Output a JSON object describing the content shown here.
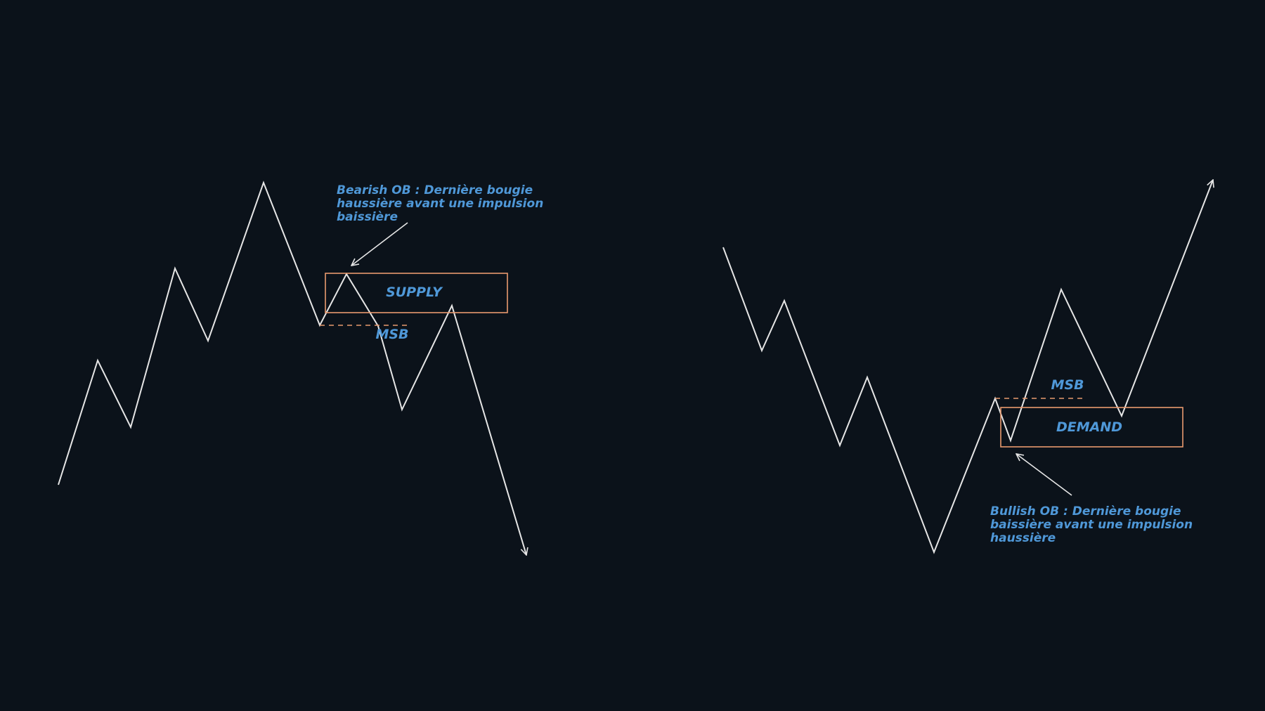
{
  "colors": {
    "background": "#0b121a",
    "price_line": "#e6e6e6",
    "zone_border": "#e89a6e",
    "msb_line": "#e89a6e",
    "label_text": "#4f98d8",
    "arrow": "#e6e6e6"
  },
  "bearish_panel": {
    "zone_label": "SUPPLY",
    "msb_label": "MSB",
    "note_lines": [
      "Bearish OB : Dernière bougie",
      "haussière avant une impulsion",
      "baissière"
    ]
  },
  "bullish_panel": {
    "zone_label": "DEMAND",
    "msb_label": "MSB",
    "note_lines": [
      "Bullish OB : Dernière bougie",
      "baissière avant une impulsion",
      "haussière"
    ]
  }
}
